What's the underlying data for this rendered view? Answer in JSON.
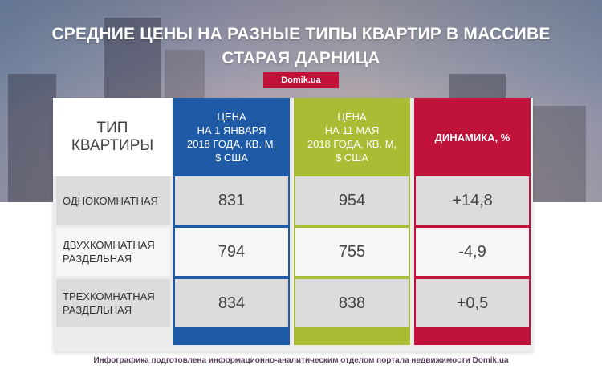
{
  "title": {
    "line1": "СРЕДНИЕ ЦЕНЫ НА РАЗНЫЕ ТИПЫ КВАРТИР В МАССИВЕ",
    "line2": "СТАРАЯ ДАРНИЦА"
  },
  "brand": "Domik.ua",
  "table": {
    "headers": {
      "type": [
        "ТИП",
        "КВАРТИРЫ"
      ],
      "price_jan": [
        "ЦЕНА",
        "НА 1 ЯНВАРЯ",
        "2018 ГОДА, КВ. М,",
        "$ США"
      ],
      "price_may": [
        "ЦЕНА",
        "НА 11 МАЯ",
        "2018 ГОДА, КВ. М,",
        "$ США"
      ],
      "dynamics": "ДИНАМИКА, %"
    },
    "rows": [
      {
        "type": [
          "ОДНОКОМНАТНАЯ"
        ],
        "jan": "831",
        "may": "954",
        "dyn": "+14,8"
      },
      {
        "type": [
          "ДВУХКОМНАТНАЯ",
          "РАЗДЕЛЬНАЯ"
        ],
        "jan": "794",
        "may": "755",
        "dyn": "-4,9"
      },
      {
        "type": [
          "ТРЕХКОМНАТНАЯ",
          "РАЗДЕЛЬНАЯ"
        ],
        "jan": "834",
        "may": "838",
        "dyn": "+0,5"
      }
    ]
  },
  "footer": "Инфографика подготовлена информационно-аналитическим отделом портала недвижимости Domik.ua",
  "colors": {
    "blue": "#1f5aa6",
    "green": "#a9bc33",
    "red": "#c1123b",
    "brand": "#c2123a"
  }
}
